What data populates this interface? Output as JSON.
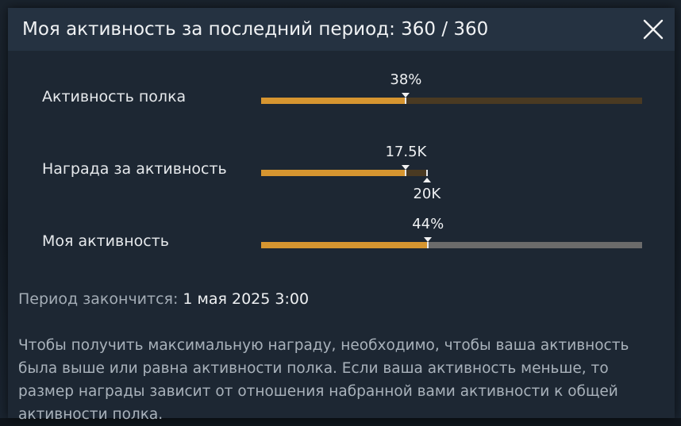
{
  "dialog": {
    "title": "Моя активность за последний период: 360 / 360",
    "close_icon": "close-icon"
  },
  "rows": [
    {
      "label": "Активность полка",
      "value_label": "38%",
      "fill_fraction": 0.38,
      "track_color": "#4a3a22"
    },
    {
      "label": "Награда за активность",
      "value_label": "17.5K",
      "fill_fraction": 0.38,
      "limit_label": "20K",
      "limit_fraction": 0.435,
      "track_color": "#4a3a22"
    },
    {
      "label": "Моя активность",
      "value_label": "44%",
      "fill_fraction": 0.438,
      "track_color": "#6b6b6b"
    }
  ],
  "period": {
    "label": "Период закончится:",
    "value": "1 мая 2025 3:00"
  },
  "description": "Чтобы получить максимальную награду, необходимо, чтобы ваша активность была выше или равна активности полка. Если ваша активность меньше, то размер награды зависит от отношения набранной вами активности к общей активности полка.",
  "colors": {
    "accent": "#d69530",
    "panel": "#1d2733",
    "header": "#253241"
  }
}
